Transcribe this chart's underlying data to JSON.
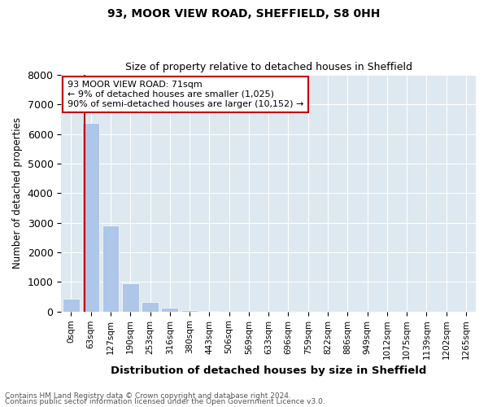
{
  "title1": "93, MOOR VIEW ROAD, SHEFFIELD, S8 0HH",
  "title2": "Size of property relative to detached houses in Sheffield",
  "xlabel": "Distribution of detached houses by size in Sheffield",
  "ylabel": "Number of detached properties",
  "footnote1": "Contains HM Land Registry data © Crown copyright and database right 2024.",
  "footnote2": "Contains public sector information licensed under the Open Government Licence v3.0.",
  "annotation_line1": "93 MOOR VIEW ROAD: 71sqm",
  "annotation_line2": "← 9% of detached houses are smaller (1,025)",
  "annotation_line3": "90% of semi-detached houses are larger (10,152) →",
  "bar_labels": [
    "0sqm",
    "63sqm",
    "127sqm",
    "190sqm",
    "253sqm",
    "316sqm",
    "380sqm",
    "443sqm",
    "506sqm",
    "569sqm",
    "633sqm",
    "696sqm",
    "759sqm",
    "822sqm",
    "886sqm",
    "949sqm",
    "1012sqm",
    "1075sqm",
    "1139sqm",
    "1202sqm",
    "1265sqm"
  ],
  "bar_values": [
    440,
    6380,
    2920,
    960,
    310,
    140,
    60,
    25,
    5,
    2,
    1,
    0,
    0,
    0,
    0,
    0,
    0,
    0,
    0,
    0,
    0
  ],
  "bar_color": "#aec6e8",
  "highlight_color": "#c00000",
  "annotation_box_color": "#c00000",
  "ylim": [
    0,
    8000
  ],
  "yticks": [
    0,
    1000,
    2000,
    3000,
    4000,
    5000,
    6000,
    7000,
    8000
  ],
  "bg_color": "#dde8f0"
}
